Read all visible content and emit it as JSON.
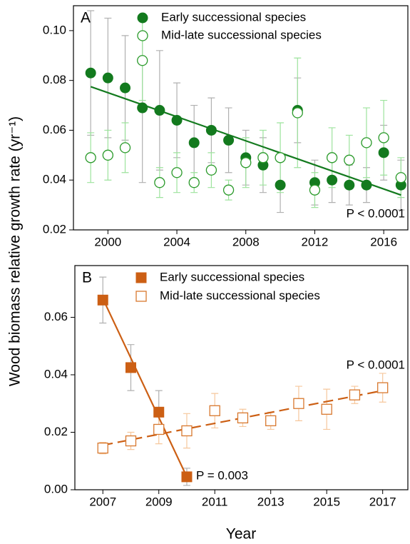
{
  "chart_data": [
    {
      "type": "scatter",
      "panel_label": "A",
      "ylabel": "Wood biomass relative growth rate (yr⁻¹)",
      "x": [
        1999,
        2000,
        2001,
        2002,
        2003,
        2004,
        2005,
        2006,
        2007,
        2008,
        2009,
        2010,
        2011,
        2012,
        2013,
        2014,
        2015,
        2016,
        2017
      ],
      "xlim": [
        1998,
        2017.4
      ],
      "xticks": [
        2000,
        2004,
        2008,
        2012,
        2016
      ],
      "ylim": [
        0.02,
        0.11
      ],
      "yticks": [
        0.02,
        0.04,
        0.06,
        0.08,
        {
          "value": 0.1,
          "label": "0.10"
        }
      ],
      "marker": "circle",
      "series": [
        {
          "name": "Early successional species",
          "color": "#137a1e",
          "fill": true,
          "error_color": "#b0b0b0",
          "values": [
            0.083,
            0.081,
            0.077,
            0.069,
            0.068,
            0.064,
            0.055,
            0.06,
            0.056,
            0.049,
            0.046,
            0.038,
            0.068,
            0.039,
            0.04,
            0.038,
            0.038,
            0.051,
            0.038
          ],
          "errors": [
            0.025,
            0.024,
            0.021,
            0.03,
            0.024,
            0.015,
            0.015,
            0.013,
            0.013,
            0.011,
            0.011,
            0.011,
            0.013,
            0.009,
            0.009,
            0.008,
            0.007,
            0.011,
            0.01
          ]
        },
        {
          "name": "Mid-late successional species",
          "color": "#2a9a2a",
          "fill": false,
          "error_color": "#9de39d",
          "values": [
            0.049,
            0.05,
            0.053,
            0.088,
            0.039,
            0.043,
            0.039,
            0.044,
            0.036,
            0.047,
            0.049,
            0.049,
            0.067,
            0.036,
            0.049,
            0.048,
            0.055,
            0.057,
            0.041
          ],
          "errors": [
            0.01,
            0.01,
            0.01,
            0.016,
            0.006,
            0.008,
            0.004,
            0.007,
            0.004,
            0.01,
            0.011,
            0.014,
            0.022,
            0.007,
            0.012,
            0.01,
            0.014,
            0.015,
            0.008
          ]
        }
      ],
      "fits": [
        {
          "x": [
            1999,
            2017
          ],
          "values": [
            0.0775,
            0.034
          ],
          "color": "#137a1e",
          "dashed": false
        }
      ],
      "annotations": [
        "P < 0.0001"
      ]
    },
    {
      "type": "scatter",
      "panel_label": "B",
      "xlabel": "Year",
      "x": [
        2007,
        2008,
        2009,
        2010,
        2011,
        2012,
        2013,
        2014,
        2015,
        2016,
        2017
      ],
      "xlim": [
        2006,
        2017.9
      ],
      "xticks": [
        2007,
        2009,
        2011,
        2013,
        2015,
        2017
      ],
      "ylim": [
        0,
        0.078
      ],
      "yticks": [
        {
          "value": 0,
          "label": "0.00"
        },
        0.02,
        0.04,
        0.06
      ],
      "marker": "square",
      "series": [
        {
          "name": "Early successional species",
          "color": "#cc5f14",
          "fill": true,
          "error_color": "#b0b0b0",
          "values": [
            0.066,
            0.0425,
            0.027,
            0.0045,
            null,
            null,
            null,
            null,
            null,
            null,
            null
          ],
          "errors": [
            0.008,
            0.008,
            0.0075,
            0.003,
            null,
            null,
            null,
            null,
            null,
            null,
            null
          ]
        },
        {
          "name": "Mid-late successional species",
          "color": "#d8782e",
          "fill": false,
          "error_color": "#f6c79c",
          "values": [
            0.0145,
            0.017,
            0.021,
            0.0205,
            0.0275,
            0.025,
            0.024,
            0.03,
            0.028,
            0.033,
            0.0355
          ],
          "errors": [
            0.002,
            0.003,
            0.005,
            0.006,
            0.006,
            0.003,
            0.003,
            0.006,
            0.007,
            0.003,
            0.005
          ]
        }
      ],
      "fits": [
        {
          "x": [
            2007,
            2010
          ],
          "values": [
            0.0665,
            0.0045
          ],
          "color": "#cc5f14",
          "dashed": false
        },
        {
          "x": [
            2007,
            2017
          ],
          "values": [
            0.0155,
            0.0345
          ],
          "color": "#cc5f14",
          "dashed": true
        }
      ],
      "annotations": [
        "P < 0.0001",
        "P = 0.003"
      ]
    }
  ]
}
